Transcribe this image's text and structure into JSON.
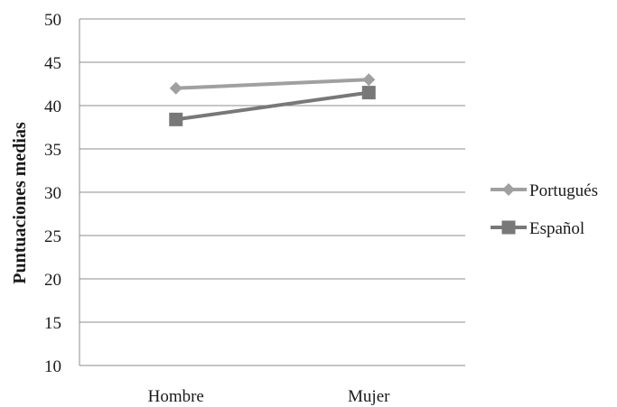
{
  "chart_data": {
    "type": "line",
    "ylabel": "Puntuaciones medias",
    "xlabel": "",
    "categories": [
      "Hombre",
      "Mujer"
    ],
    "ylim": [
      10,
      50
    ],
    "yticks": [
      10,
      15,
      20,
      25,
      30,
      35,
      40,
      45,
      50
    ],
    "grid": true,
    "legend_position": "right",
    "series": [
      {
        "name": "Portugués",
        "values": [
          42,
          43
        ],
        "color": "#a0a0a0",
        "marker": "diamond"
      },
      {
        "name": "Español",
        "values": [
          38.4,
          41.5
        ],
        "color": "#787878",
        "marker": "square"
      }
    ]
  }
}
